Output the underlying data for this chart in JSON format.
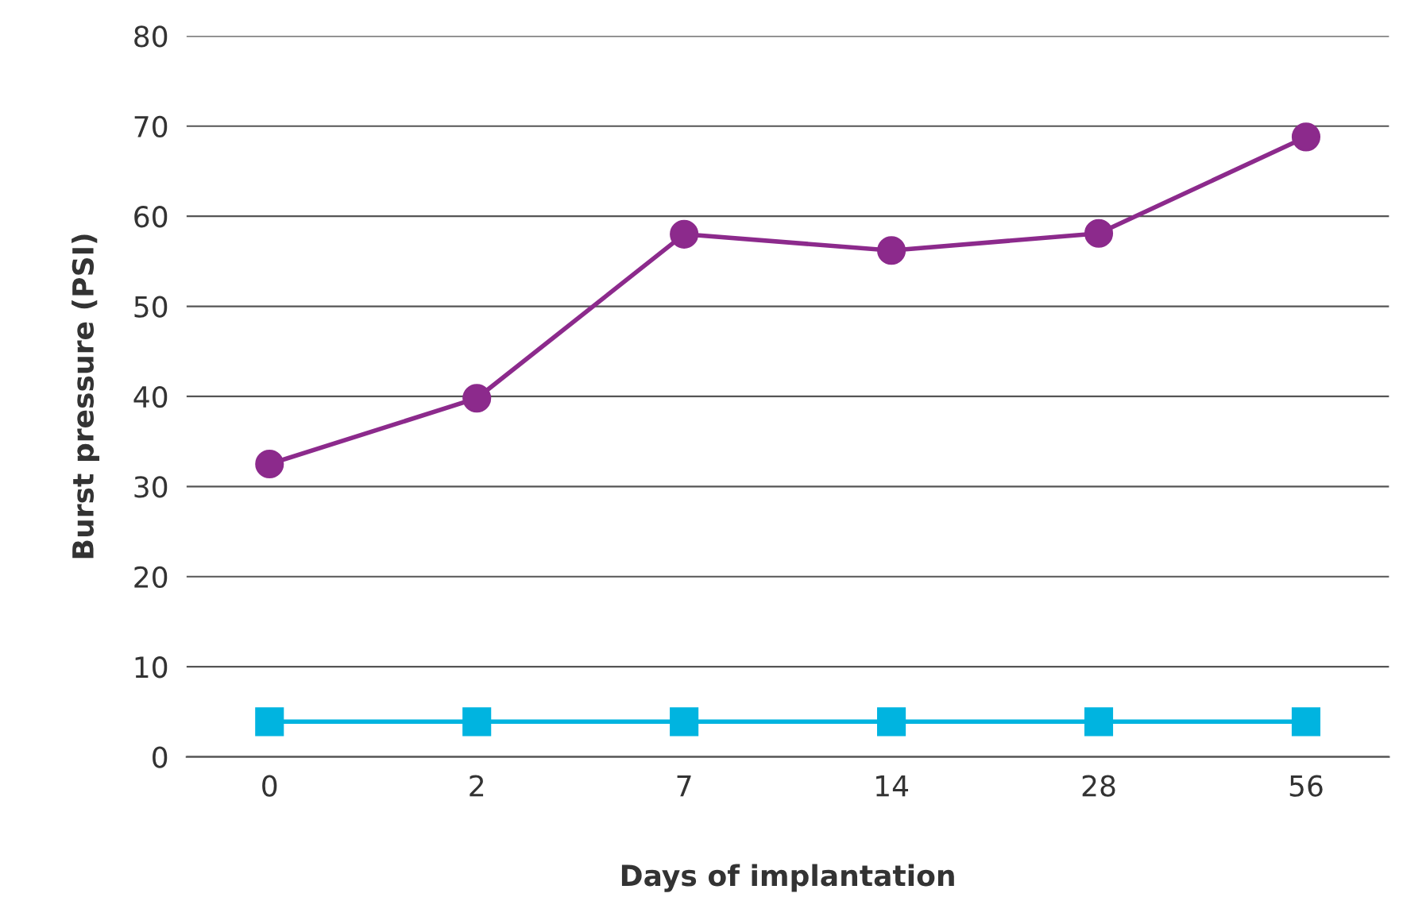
{
  "chart_data": {
    "type": "line",
    "xlabel": "Days of implantation",
    "ylabel": "Burst pressure (PSI)",
    "categories": [
      "0",
      "2",
      "7",
      "14",
      "28",
      "56"
    ],
    "series": [
      {
        "color": "#8c2a8c",
        "values": [
          32.5,
          39.8,
          58.0,
          56.2,
          58.1,
          68.8
        ],
        "marker": "circle"
      },
      {
        "color": "#00b4e0",
        "values": [
          3.9,
          3.9,
          3.9,
          3.9,
          3.9,
          3.9
        ],
        "marker": "square"
      }
    ],
    "ylim": [
      0,
      80
    ],
    "yticks": [
      0,
      10,
      20,
      30,
      40,
      50,
      60,
      70,
      80
    ],
    "grid": "y",
    "legend": false,
    "line_style": "solid"
  }
}
